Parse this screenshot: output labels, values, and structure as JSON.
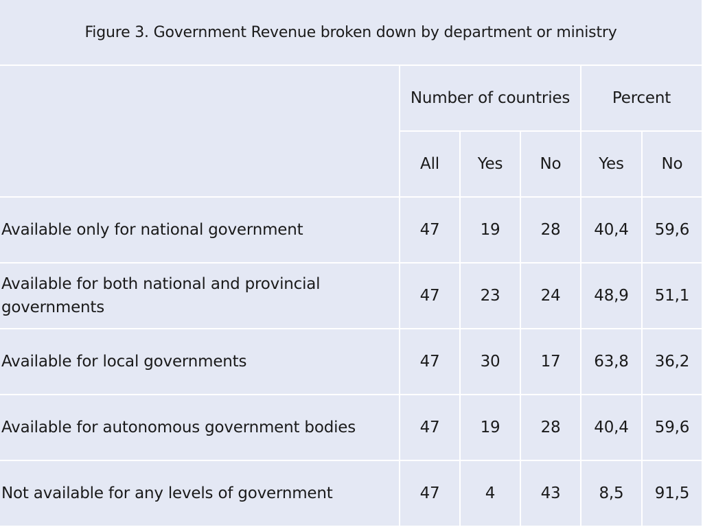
{
  "title": "Figure 3. Government Revenue broken down by department or ministry",
  "header": {
    "group_countries": "Number of countries",
    "group_percent": "Percent",
    "sub": [
      "All",
      "Yes",
      "No",
      "Yes",
      "No"
    ]
  },
  "rows": [
    {
      "label": "Available only for national government",
      "all": "47",
      "yes": "19",
      "no": "28",
      "pct_yes": "40,4",
      "pct_no": "59,6"
    },
    {
      "label": "Available for both national and provincial governments",
      "all": "47",
      "yes": "23",
      "no": "24",
      "pct_yes": "48,9",
      "pct_no": "51,1"
    },
    {
      "label": "Available for local governments",
      "all": "47",
      "yes": "30",
      "no": "17",
      "pct_yes": "63,8",
      "pct_no": "36,2"
    },
    {
      "label": "Available for autonomous government bodies",
      "all": "47",
      "yes": "19",
      "no": "28",
      "pct_yes": "40,4",
      "pct_no": "59,6"
    },
    {
      "label": "Not available for any levels of government",
      "all": "47",
      "yes": "4",
      "no": "43",
      "pct_yes": "8,5",
      "pct_no": "91,5"
    }
  ]
}
